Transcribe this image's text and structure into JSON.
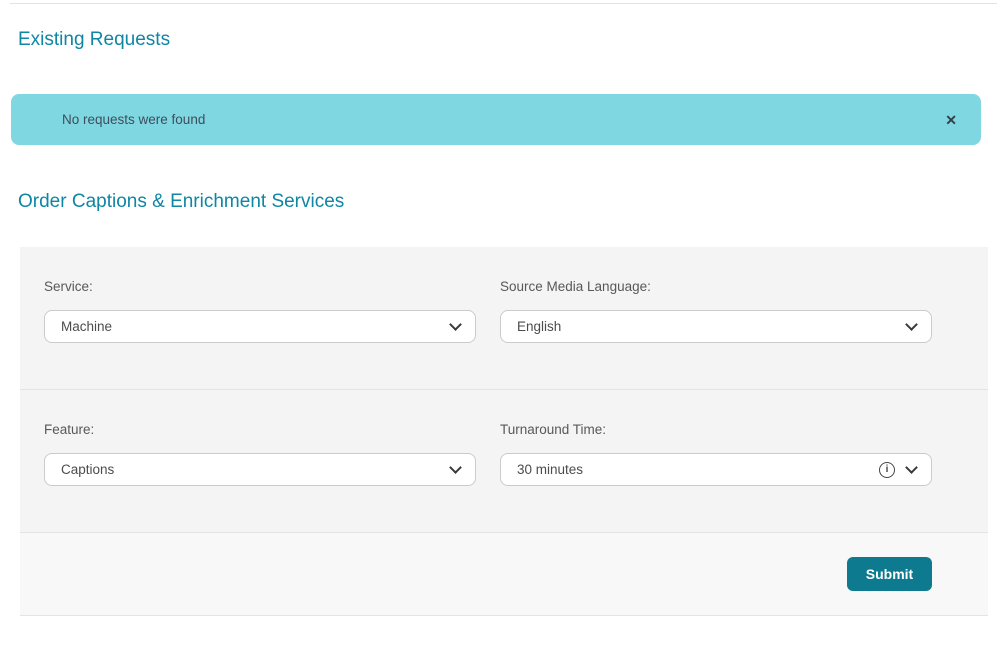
{
  "headings": {
    "existing_requests": "Existing Requests",
    "order_services": "Order Captions & Enrichment Services"
  },
  "alert": {
    "message": "No requests were found",
    "close_icon": "✕"
  },
  "form": {
    "fields": [
      {
        "label": "Service:",
        "value": "Machine",
        "has_info": false
      },
      {
        "label": "Source Media Language:",
        "value": "English",
        "has_info": false
      },
      {
        "label": "Feature:",
        "value": "Captions",
        "has_info": false
      },
      {
        "label": "Turnaround Time:",
        "value": "30 minutes",
        "has_info": true
      }
    ],
    "submit_label": "Submit"
  },
  "icons": {
    "close": "✕",
    "info": "i",
    "chevron_down": "chevron-down"
  },
  "colors": {
    "heading_teal": "#0e86a4",
    "alert_background": "#7fd7e2",
    "alert_text": "#3e4d5c",
    "form_background": "#f4f4f5",
    "footer_background": "#f8f8f9",
    "divider": "#e3e3e4",
    "submit_background": "#0d7a90",
    "submit_text": "#ffffff"
  }
}
